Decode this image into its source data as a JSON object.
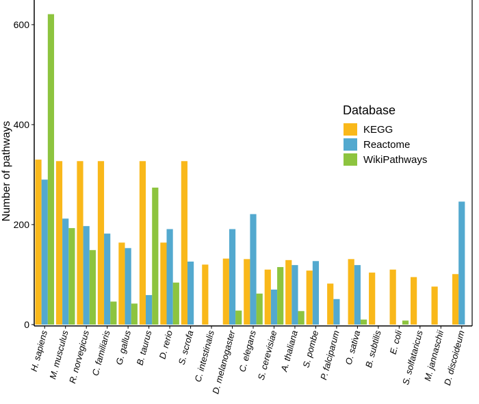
{
  "chart_data": {
    "type": "bar",
    "ylabel": "Number of pathways",
    "xlabel": "",
    "ylim": [
      0,
      650
    ],
    "yticks": [
      0,
      200,
      400,
      600
    ],
    "grid": false,
    "legend": {
      "title": "Database",
      "placement": "right"
    },
    "categories": [
      "H. sapiens",
      "M. musculus",
      "R. norvegicus",
      "C. familiaris",
      "G. gallus",
      "B. taurus",
      "D. rerio",
      "S. scrofa",
      "C. intestinalis",
      "D. melanogaster",
      "C. elegans",
      "S. cerevisiae",
      "A. thaliana",
      "S. pombe",
      "P. falciparum",
      "O. sativa",
      "B. subtilis",
      "E. coli",
      "S. solfataricus",
      "M. jannaschii",
      "D. discoideum"
    ],
    "series": [
      {
        "name": "KEGG",
        "color": "#F9B81A",
        "values": [
          330,
          327,
          327,
          327,
          164,
          327,
          164,
          327,
          120,
          132,
          131,
          110,
          129,
          108,
          82,
          131,
          104,
          110,
          95,
          76,
          101
        ]
      },
      {
        "name": "Reactome",
        "color": "#53A9CF",
        "values": [
          290,
          212,
          197,
          182,
          153,
          59,
          191,
          126,
          null,
          191,
          221,
          70,
          119,
          127,
          51,
          119,
          null,
          null,
          null,
          null,
          246
        ]
      },
      {
        "name": "WikiPathways",
        "color": "#8DC43F",
        "values": [
          621,
          193,
          149,
          46,
          42,
          274,
          84,
          null,
          null,
          28,
          62,
          115,
          27,
          null,
          null,
          10,
          null,
          8,
          null,
          null,
          null
        ]
      }
    ]
  }
}
